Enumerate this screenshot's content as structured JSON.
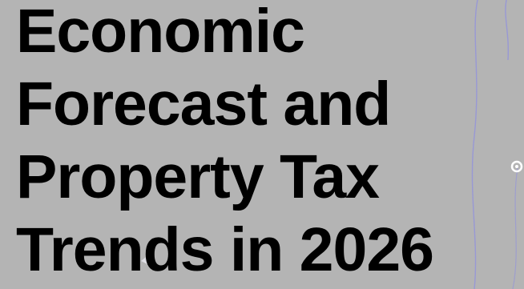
{
  "title": {
    "lines": [
      "Economic",
      "Forecast and",
      "Property Tax",
      "Trends in 2026"
    ]
  },
  "colors": {
    "background": "#b4b4b4",
    "text": "#000000",
    "accent_line": "#8f8fe0",
    "node": "#ffffff"
  }
}
